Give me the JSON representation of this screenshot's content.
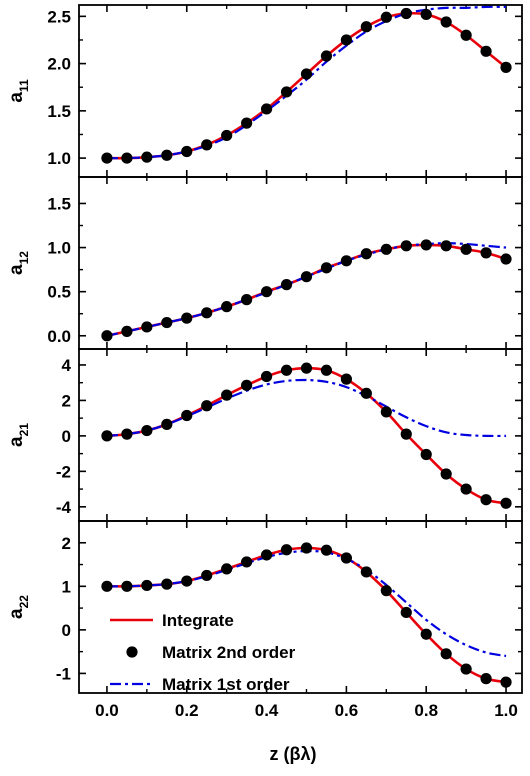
{
  "chart_data": {
    "type": "line",
    "xlabel": "z (βλ)",
    "x": [
      0.0,
      0.05,
      0.1,
      0.15,
      0.2,
      0.25,
      0.3,
      0.35,
      0.4,
      0.45,
      0.5,
      0.55,
      0.6,
      0.65,
      0.7,
      0.75,
      0.8,
      0.85,
      0.9,
      0.95,
      1.0
    ],
    "xlim": [
      -0.07,
      1.04
    ],
    "xticks": [
      0.0,
      0.2,
      0.4,
      0.6,
      0.8,
      1.0
    ],
    "xtick_labels": [
      "0.0",
      "0.2",
      "0.4",
      "0.6",
      "0.8",
      "1.0"
    ],
    "legend": {
      "location": "bottom-left of last panel",
      "entries": [
        {
          "label": "Integrate",
          "color": "#e8000b",
          "style": "solid-line"
        },
        {
          "label": "Matrix 2nd order",
          "color": "#000000",
          "style": "filled-circle"
        },
        {
          "label": "Matrix 1st order",
          "color": "#0000e0",
          "style": "dash-dot-line"
        }
      ]
    },
    "panels": [
      {
        "ylabel_main": "a",
        "ylabel_sub": "11",
        "ylim": [
          0.8,
          2.62
        ],
        "yticks": [
          1.0,
          1.5,
          2.0,
          2.5
        ],
        "ytick_labels": [
          "1.0",
          "1.5",
          "2.0",
          "2.5"
        ],
        "integrate": [
          1.0,
          1.0,
          1.01,
          1.03,
          1.07,
          1.14,
          1.24,
          1.37,
          1.52,
          1.7,
          1.89,
          2.08,
          2.25,
          2.39,
          2.49,
          2.53,
          2.52,
          2.44,
          2.3,
          2.13,
          1.96
        ],
        "second_order": [
          1.0,
          1.0,
          1.01,
          1.03,
          1.07,
          1.14,
          1.24,
          1.37,
          1.52,
          1.7,
          1.89,
          2.08,
          2.25,
          2.39,
          2.49,
          2.53,
          2.52,
          2.44,
          2.3,
          2.13,
          1.96
        ],
        "first_order": [
          1.0,
          1.0,
          1.01,
          1.03,
          1.07,
          1.13,
          1.22,
          1.35,
          1.5,
          1.66,
          1.83,
          2.02,
          2.19,
          2.34,
          2.45,
          2.53,
          2.57,
          2.59,
          2.59,
          2.6,
          2.6
        ]
      },
      {
        "ylabel_main": "a",
        "ylabel_sub": "12",
        "ylim": [
          -0.15,
          1.8
        ],
        "yticks": [
          0.0,
          0.5,
          1.0,
          1.5
        ],
        "ytick_labels": [
          "0.0",
          "0.5",
          "1.0",
          "1.5"
        ],
        "integrate": [
          0.0,
          0.05,
          0.1,
          0.15,
          0.2,
          0.26,
          0.33,
          0.41,
          0.5,
          0.58,
          0.67,
          0.77,
          0.85,
          0.93,
          0.98,
          1.02,
          1.03,
          1.02,
          0.98,
          0.94,
          0.87
        ],
        "second_order": [
          0.0,
          0.05,
          0.1,
          0.15,
          0.2,
          0.26,
          0.33,
          0.41,
          0.5,
          0.58,
          0.67,
          0.77,
          0.85,
          0.93,
          0.98,
          1.02,
          1.03,
          1.02,
          0.98,
          0.94,
          0.87
        ],
        "first_order": [
          0.0,
          0.05,
          0.1,
          0.15,
          0.2,
          0.26,
          0.33,
          0.41,
          0.49,
          0.58,
          0.67,
          0.76,
          0.85,
          0.92,
          0.98,
          1.02,
          1.04,
          1.05,
          1.04,
          1.02,
          1.0
        ]
      },
      {
        "ylabel_main": "a",
        "ylabel_sub": "21",
        "ylim": [
          -4.8,
          4.9
        ],
        "yticks": [
          -4,
          -2,
          0,
          2,
          4
        ],
        "ytick_labels": [
          "-4",
          "-2",
          "0",
          "2",
          "4"
        ],
        "integrate": [
          0.0,
          0.1,
          0.3,
          0.65,
          1.15,
          1.7,
          2.3,
          2.85,
          3.35,
          3.7,
          3.82,
          3.7,
          3.2,
          2.4,
          1.35,
          0.1,
          -1.05,
          -2.15,
          -3.0,
          -3.6,
          -3.8
        ],
        "second_order": [
          0.0,
          0.1,
          0.3,
          0.65,
          1.15,
          1.7,
          2.3,
          2.85,
          3.35,
          3.7,
          3.82,
          3.7,
          3.2,
          2.4,
          1.35,
          0.1,
          -1.05,
          -2.15,
          -3.0,
          -3.6,
          -3.8
        ],
        "first_order": [
          0.0,
          0.1,
          0.3,
          0.65,
          1.1,
          1.6,
          2.1,
          2.55,
          2.9,
          3.1,
          3.15,
          3.05,
          2.75,
          2.25,
          1.65,
          1.05,
          0.55,
          0.2,
          0.05,
          0.0,
          0.0
        ]
      },
      {
        "ylabel_main": "a",
        "ylabel_sub": "22",
        "ylim": [
          -1.45,
          2.5
        ],
        "yticks": [
          -1,
          0,
          1,
          2
        ],
        "ytick_labels": [
          "-1",
          "0",
          "1",
          "2"
        ],
        "integrate": [
          1.0,
          1.0,
          1.02,
          1.05,
          1.12,
          1.25,
          1.4,
          1.56,
          1.72,
          1.84,
          1.88,
          1.83,
          1.65,
          1.33,
          0.9,
          0.4,
          -0.1,
          -0.55,
          -0.9,
          -1.12,
          -1.2
        ],
        "second_order": [
          1.0,
          1.0,
          1.02,
          1.05,
          1.12,
          1.25,
          1.4,
          1.56,
          1.72,
          1.84,
          1.88,
          1.83,
          1.65,
          1.33,
          0.9,
          0.4,
          -0.1,
          -0.55,
          -0.9,
          -1.12,
          -1.2
        ],
        "first_order": [
          1.0,
          1.0,
          1.02,
          1.05,
          1.12,
          1.23,
          1.38,
          1.53,
          1.67,
          1.77,
          1.81,
          1.78,
          1.63,
          1.38,
          1.03,
          0.63,
          0.23,
          -0.1,
          -0.35,
          -0.52,
          -0.6
        ]
      }
    ]
  }
}
